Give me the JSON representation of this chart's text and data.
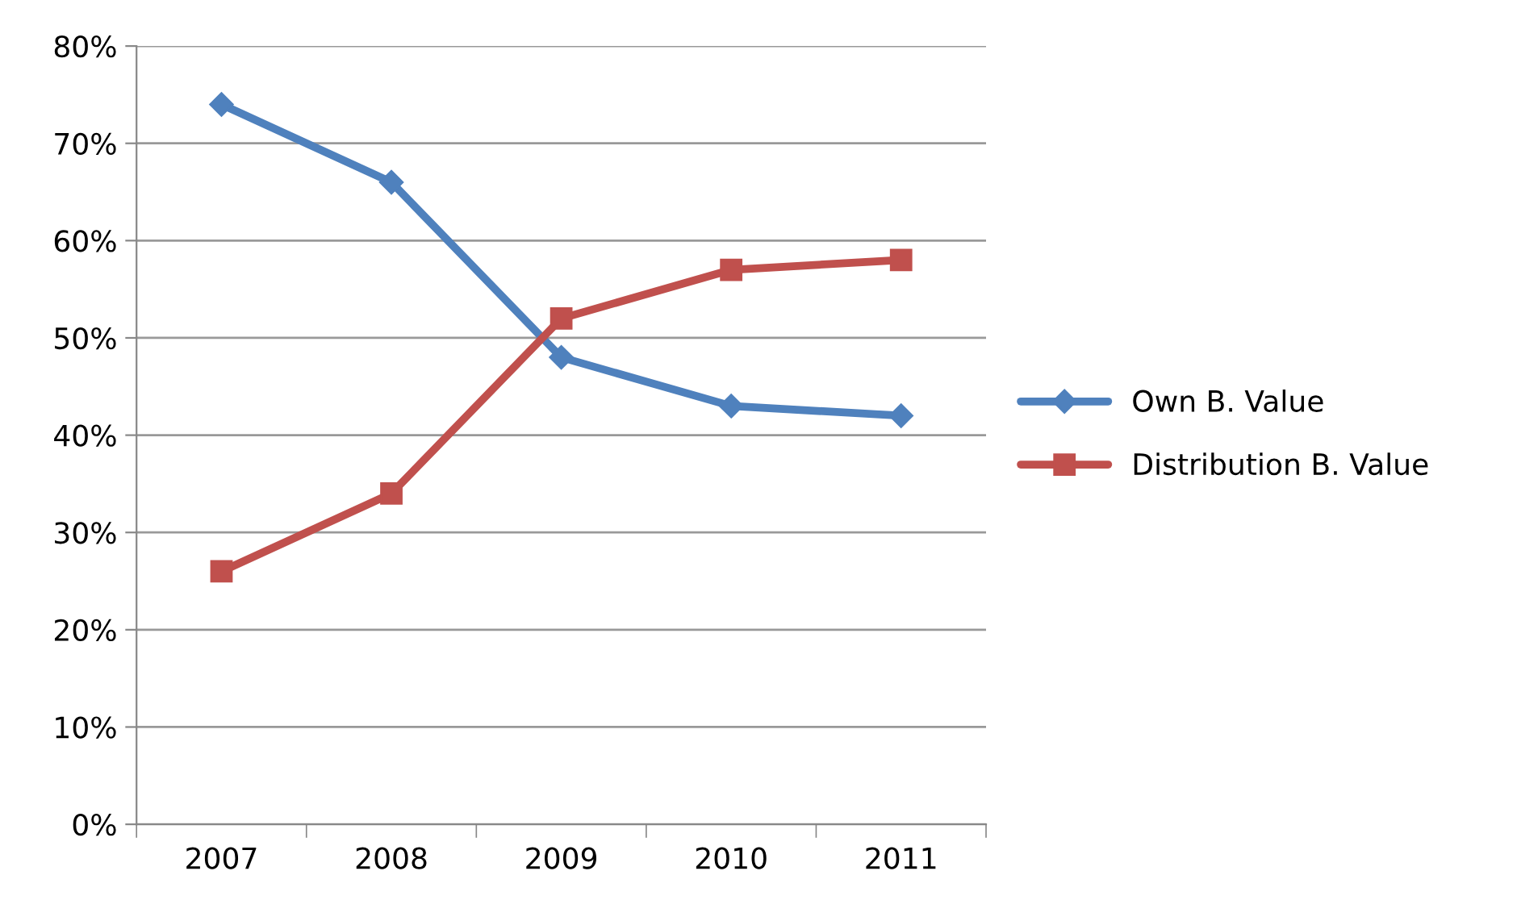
{
  "chart_data": {
    "type": "line",
    "categories": [
      "2007",
      "2008",
      "2009",
      "2010",
      "2011"
    ],
    "series": [
      {
        "name": "Own B. Value",
        "color": "#4f81bd",
        "marker": "diamond",
        "values": [
          74,
          66,
          48,
          43,
          42
        ]
      },
      {
        "name": "Distribution B. Value",
        "color": "#c0504d",
        "marker": "square",
        "values": [
          26,
          34,
          52,
          57,
          58
        ]
      }
    ],
    "ylim": [
      0,
      80
    ],
    "yticks": [
      {
        "value": 0,
        "label": "0%"
      },
      {
        "value": 10,
        "label": "10%"
      },
      {
        "value": 20,
        "label": "20%"
      },
      {
        "value": 30,
        "label": "30%"
      },
      {
        "value": 40,
        "label": "40%"
      },
      {
        "value": 50,
        "label": "50%"
      },
      {
        "value": 60,
        "label": "60%"
      },
      {
        "value": 70,
        "label": "70%"
      },
      {
        "value": 80,
        "label": "80%"
      }
    ],
    "grid": "y",
    "legend": "right",
    "line_style": "solid"
  }
}
